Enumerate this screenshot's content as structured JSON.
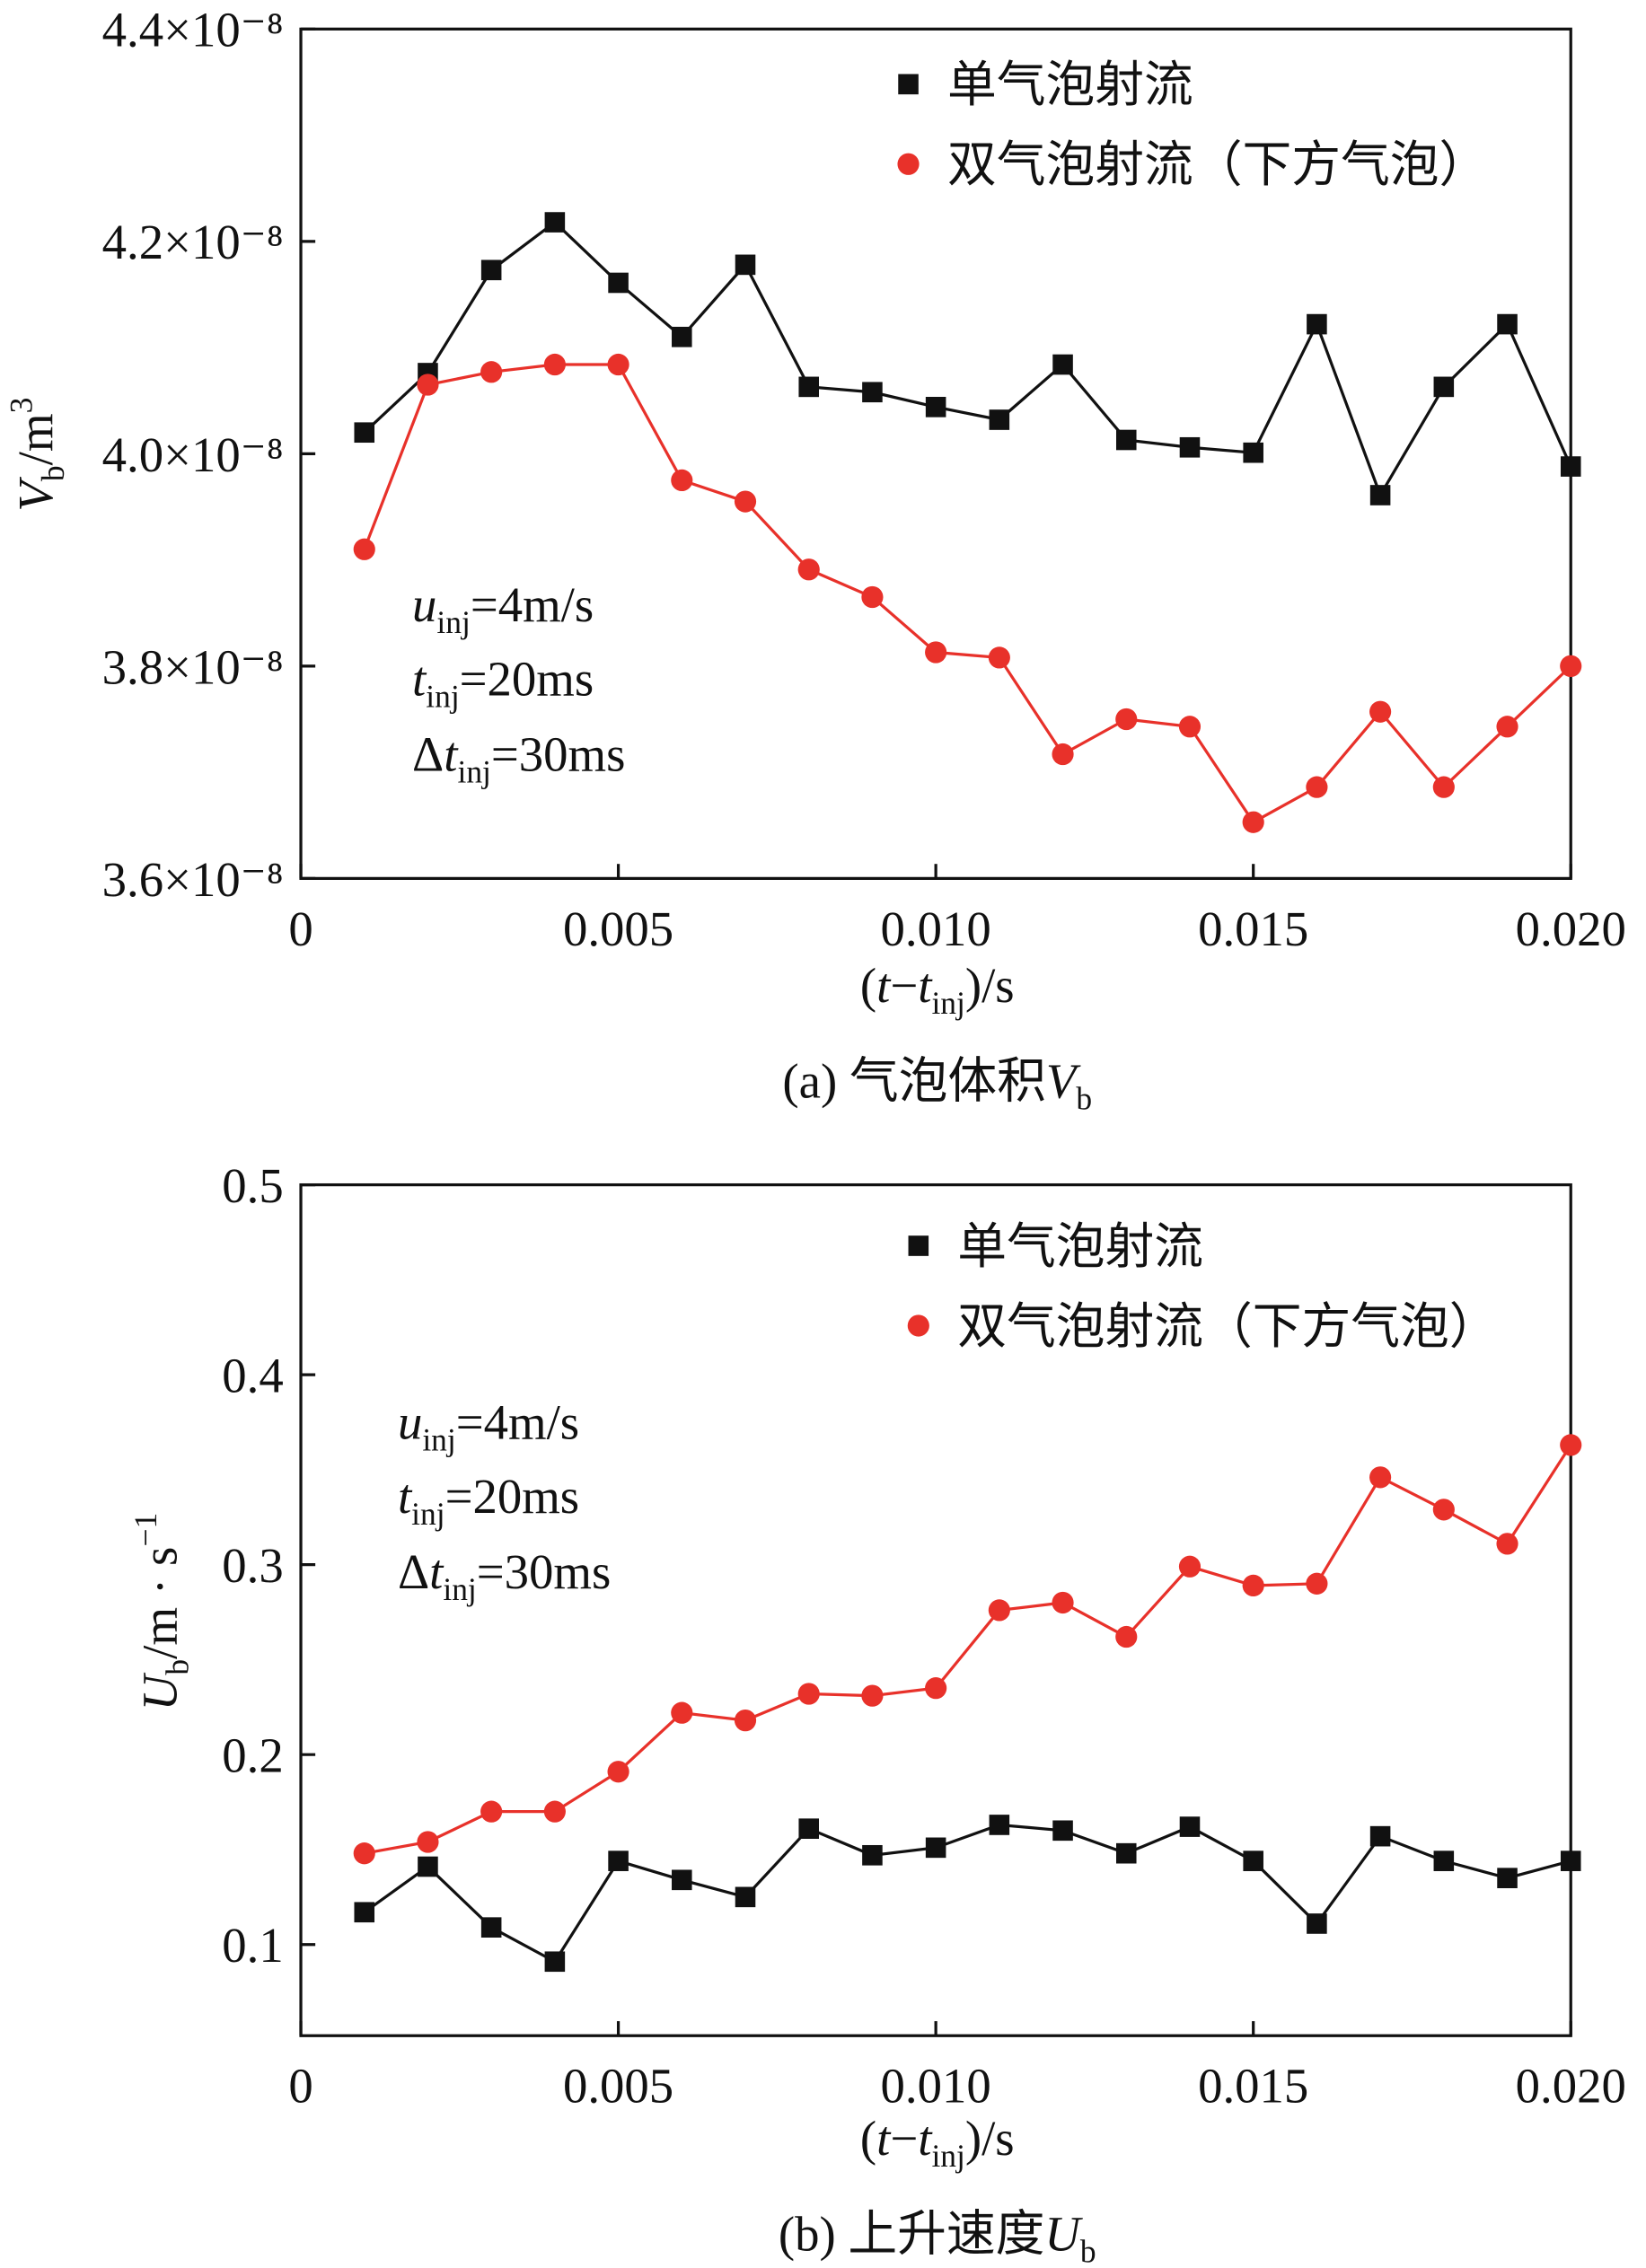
{
  "chart_data": [
    {
      "type": "line",
      "x": [
        0.001,
        0.002,
        0.003,
        0.004,
        0.005,
        0.006,
        0.007,
        0.008,
        0.009,
        0.01,
        0.011,
        0.012,
        0.013,
        0.014,
        0.015,
        0.016,
        0.017,
        0.018,
        0.019,
        0.02
      ],
      "series": [
        {
          "name": "单气泡射流",
          "color": "#111111",
          "marker": "square",
          "values": [
            4.02e-08,
            4.076e-08,
            4.173e-08,
            4.218e-08,
            4.161e-08,
            4.11e-08,
            4.178e-08,
            4.063e-08,
            4.058e-08,
            4.044e-08,
            4.032e-08,
            4.084e-08,
            4.013e-08,
            4.006e-08,
            4.001e-08,
            4.122e-08,
            3.961e-08,
            4.063e-08,
            4.122e-08,
            3.988e-08
          ]
        },
        {
          "name": "双气泡射流（下方气泡）",
          "color": "#e8312a",
          "marker": "circle",
          "values": [
            3.91e-08,
            4.065e-08,
            4.077e-08,
            4.084e-08,
            4.084e-08,
            3.975e-08,
            3.955e-08,
            3.891e-08,
            3.865e-08,
            3.813e-08,
            3.808e-08,
            3.717e-08,
            3.75e-08,
            3.743e-08,
            3.653e-08,
            3.686e-08,
            3.757e-08,
            3.686e-08,
            3.743e-08,
            3.8e-08
          ]
        }
      ],
      "xlim": [
        0,
        0.02
      ],
      "ylim": [
        3.6e-08,
        4.4e-08
      ],
      "xticks": [
        0,
        0.005,
        {
          "value": 0.01,
          "label": "0.010"
        },
        0.015,
        {
          "value": 0.02,
          "label": "0.020"
        }
      ],
      "yticks": [
        {
          "value": 3.6e-08,
          "label": "3.6×10⁻⁸"
        },
        {
          "value": 3.8e-08,
          "label": "3.8×10⁻⁸"
        },
        {
          "value": 4e-08,
          "label": "4.0×10⁻⁸"
        },
        {
          "value": 4.2e-08,
          "label": "4.2×10⁻⁸"
        },
        {
          "value": 4.4e-08,
          "label": "4.4×10⁻⁸"
        }
      ],
      "ylabel": [
        "V",
        "b",
        "/m",
        "3"
      ],
      "xlabel": [
        "(",
        "t",
        "−",
        "t",
        "inj",
        ")/s"
      ],
      "caption": [
        "(a) 气泡体积",
        "V",
        "b"
      ],
      "annotations": [
        [
          "u",
          "inj",
          "=4m/s"
        ],
        [
          "t",
          "inj",
          "=20ms"
        ],
        [
          "Δ",
          "t",
          "inj",
          "=30ms"
        ]
      ]
    },
    {
      "type": "line",
      "x": [
        0.001,
        0.002,
        0.003,
        0.004,
        0.005,
        0.006,
        0.007,
        0.008,
        0.009,
        0.01,
        0.011,
        0.012,
        0.013,
        0.014,
        0.015,
        0.016,
        0.017,
        0.018,
        0.019,
        0.02
      ],
      "series": [
        {
          "name": "单气泡射流",
          "color": "#111111",
          "marker": "square",
          "values": [
            0.117,
            0.141,
            0.109,
            0.091,
            0.144,
            0.134,
            0.125,
            0.161,
            0.147,
            0.151,
            0.163,
            0.16,
            0.148,
            0.162,
            0.144,
            0.111,
            0.157,
            0.144,
            0.135,
            0.144
          ]
        },
        {
          "name": "双气泡射流（下方气泡）",
          "color": "#e8312a",
          "marker": "circle",
          "values": [
            0.148,
            0.154,
            0.17,
            0.17,
            0.191,
            0.222,
            0.218,
            0.232,
            0.231,
            0.235,
            0.276,
            0.28,
            0.262,
            0.299,
            0.289,
            0.29,
            0.346,
            0.329,
            0.311,
            0.363
          ]
        }
      ],
      "xlim": [
        0,
        0.02
      ],
      "ylim": [
        0.052,
        0.5
      ],
      "xticks": [
        0,
        0.005,
        {
          "value": 0.01,
          "label": "0.010"
        },
        0.015,
        {
          "value": 0.02,
          "label": "0.020"
        }
      ],
      "yticks": [
        0.1,
        0.2,
        0.3,
        0.4,
        0.5
      ],
      "ylabel": [
        "U",
        "b",
        "/m · s",
        "−1"
      ],
      "xlabel": [
        "(",
        "t",
        "−",
        "t",
        "inj",
        ")/s"
      ],
      "caption": [
        "(b) 上升速度",
        "U",
        "b"
      ],
      "annotations": [
        [
          "u",
          "inj",
          "=4m/s"
        ],
        [
          "t",
          "inj",
          "=20ms"
        ],
        [
          "Δ",
          "t",
          "inj",
          "=30ms"
        ]
      ]
    }
  ]
}
